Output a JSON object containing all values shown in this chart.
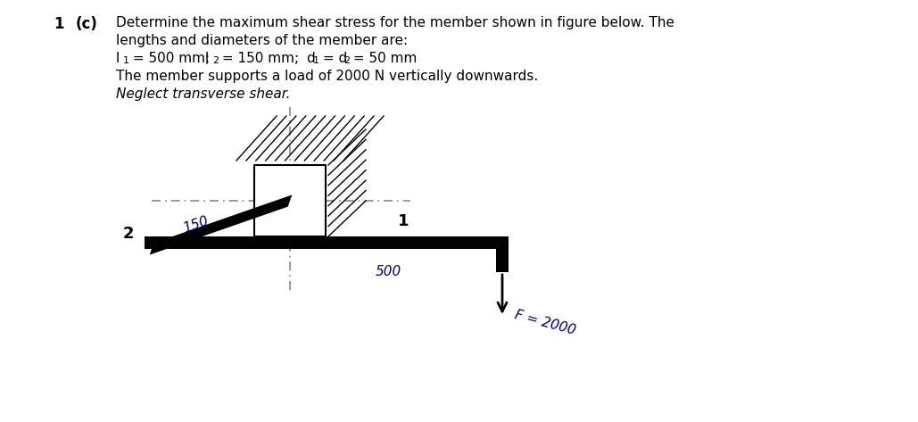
{
  "bg_color": "#ffffff",
  "text_color": "#000000",
  "member_color": "#000000",
  "label_color": "#000080",
  "dash_color": "#888888",
  "fig_width": 10.29,
  "fig_height": 4.73,
  "line1": "Determine the maximum shear stress for the member shown in figure below. The",
  "line2": "lengths and diameters of the member are:",
  "line3a": "l",
  "line3b": "1",
  "line3c": " = 500 mm;    ",
  "line3d": "l",
  "line3e": "2",
  "line3f": " = 150 mm;    d",
  "line3g": "1",
  "line3h": " = d",
  "line3i": "2",
  "line3j": " = 50 mm",
  "line4": "The member supports a load of 2000 N vertically downwards.",
  "line5": "Neglect transverse shear.",
  "num": "1",
  "letter": "(c)",
  "lbl_2": "2",
  "lbl_1": "1",
  "lbl_150": "150",
  "lbl_500": "500",
  "lbl_F": "F = 2000"
}
